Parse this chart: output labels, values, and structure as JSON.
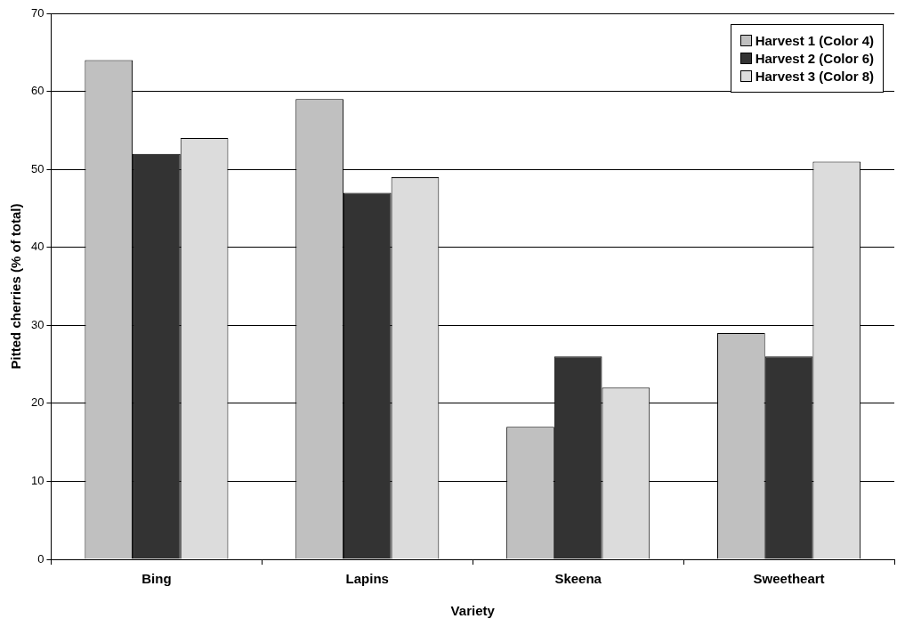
{
  "chart_data": {
    "type": "bar",
    "xlabel": "Variety",
    "ylabel": "Pitted cherries (% of total)",
    "categories": [
      "Bing",
      "Lapins",
      "Skeena",
      "Sweetheart"
    ],
    "series": [
      {
        "name": "Harvest 1 (Color 4)",
        "color": "#c0c0c0",
        "values": [
          64,
          59,
          17,
          29
        ]
      },
      {
        "name": "Harvest 2 (Color 6)",
        "color": "#333333",
        "values": [
          52,
          47,
          26,
          26
        ]
      },
      {
        "name": "Harvest 3 (Color 8)",
        "color": "#dcdcdc",
        "values": [
          54,
          49,
          22,
          51
        ]
      }
    ],
    "ylim": [
      0,
      70
    ],
    "yticks": [
      0,
      10,
      20,
      30,
      40,
      50,
      60,
      70
    ],
    "grid": "y",
    "legend": "top right"
  }
}
